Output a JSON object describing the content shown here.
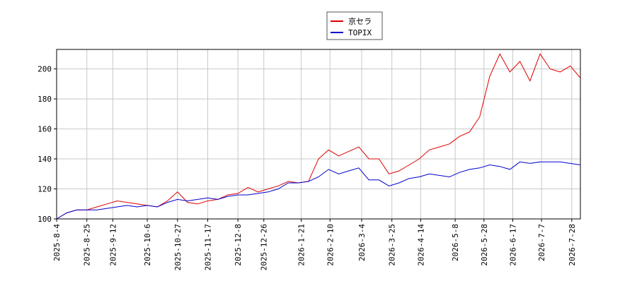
{
  "chart_data": {
    "type": "line",
    "x": [
      "2025-8-4",
      "2025-8-11",
      "2025-8-18",
      "2025-8-25",
      "2025-9-1",
      "2025-9-8",
      "2025-9-15",
      "2025-9-22",
      "2025-9-29",
      "2025-10-6",
      "2025-10-13",
      "2025-10-20",
      "2025-10-27",
      "2025-11-3",
      "2025-11-10",
      "2025-11-17",
      "2025-11-24",
      "2025-12-1",
      "2025-12-8",
      "2025-12-15",
      "2025-12-22",
      "2025-12-29",
      "2026-1-5",
      "2026-1-12",
      "2026-1-19",
      "2026-1-26",
      "2026-2-2",
      "2026-2-9",
      "2026-2-16",
      "2026-2-23",
      "2026-3-2",
      "2026-3-9",
      "2026-3-16",
      "2026-3-23",
      "2026-3-30",
      "2026-4-6",
      "2026-4-13",
      "2026-4-20",
      "2026-4-27",
      "2026-5-4",
      "2026-5-11",
      "2026-5-18",
      "2026-5-25",
      "2026-6-1",
      "2026-6-8",
      "2026-6-15",
      "2026-6-22",
      "2026-6-29",
      "2026-7-6",
      "2026-7-13",
      "2026-7-20",
      "2026-7-27",
      "2026-8-3"
    ],
    "series": [
      {
        "name": "京セラ",
        "color": "#dd0000",
        "values": [
          100,
          104,
          106,
          106,
          108,
          110,
          112,
          111,
          110,
          109,
          108,
          112,
          118,
          111,
          110,
          112,
          113,
          116,
          117,
          121,
          118,
          120,
          122,
          125,
          124,
          125,
          140,
          146,
          142,
          145,
          148,
          140,
          140,
          130,
          132,
          136,
          140,
          146,
          148,
          150,
          155,
          158,
          168,
          195,
          210,
          198,
          205,
          192,
          210,
          200,
          198,
          202,
          194
        ]
      },
      {
        "name": "TOPIX",
        "color": "#0000cc",
        "values": [
          100,
          104,
          106,
          106,
          106,
          107,
          108,
          109,
          108,
          109,
          108,
          111,
          113,
          112,
          113,
          114,
          113,
          115,
          116,
          116,
          117,
          118,
          120,
          124,
          124,
          125,
          128,
          133,
          130,
          132,
          134,
          126,
          126,
          122,
          124,
          127,
          128,
          130,
          129,
          128,
          131,
          133,
          134,
          136,
          135,
          133,
          138,
          137,
          138,
          138,
          138,
          137,
          136
        ]
      }
    ],
    "xlim": [
      "2025-8-4",
      "2026-8-3"
    ],
    "xticks": [
      "2025-8-4",
      "2025-8-25",
      "2025-9-12",
      "2025-10-6",
      "2025-10-27",
      "2025-11-17",
      "2025-12-8",
      "2025-12-26",
      "2026-1-21",
      "2026-2-10",
      "2026-3-4",
      "2026-3-25",
      "2026-4-14",
      "2026-5-8",
      "2026-5-28",
      "2026-6-17",
      "2026-7-7",
      "2026-7-28"
    ],
    "ylim": [
      100,
      213
    ],
    "yticks": [
      100,
      120,
      140,
      160,
      180,
      200
    ],
    "grid": true
  }
}
